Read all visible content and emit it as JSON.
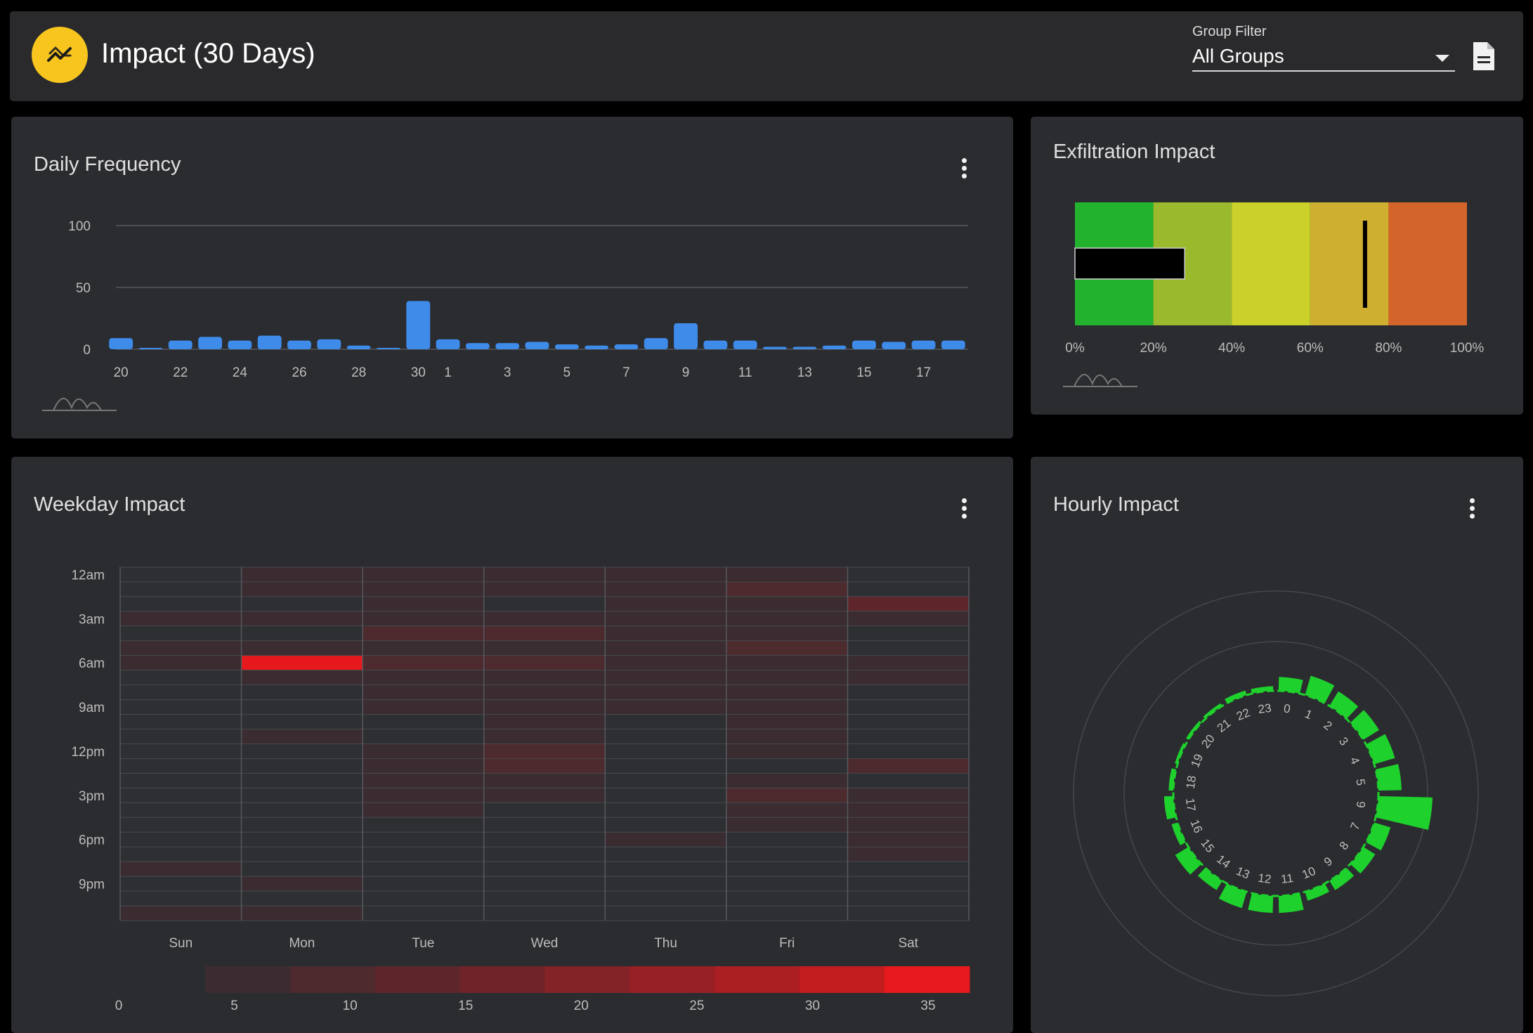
{
  "header": {
    "title": "Impact (30 Days)",
    "icon": "trending-icon",
    "filter_label": "Group Filter",
    "filter_value": "All Groups",
    "export_icon": "document-icon",
    "accent": "#f7c51e"
  },
  "daily": {
    "title": "Daily Frequency",
    "menu_icon": "more-vert-icon",
    "chart_data": {
      "type": "bar",
      "categories": [
        "20",
        "21",
        "22",
        "23",
        "24",
        "25",
        "26",
        "27",
        "28",
        "29",
        "30",
        "1",
        "2",
        "3",
        "4",
        "5",
        "6",
        "7",
        "8",
        "9",
        "10",
        "11",
        "12",
        "13",
        "14",
        "15",
        "16",
        "17",
        "18"
      ],
      "values": [
        9,
        1,
        7,
        10,
        7,
        11,
        7,
        8,
        3,
        1,
        39,
        8,
        5,
        5,
        6,
        4,
        3,
        4,
        9,
        21,
        7,
        7,
        2,
        2,
        3,
        7,
        6,
        7,
        7
      ],
      "xticks": [
        "20",
        "22",
        "24",
        "26",
        "28",
        "30",
        "1",
        "3",
        "5",
        "7",
        "9",
        "11",
        "13",
        "15",
        "17"
      ],
      "yticks": [
        "0",
        "50",
        "100"
      ],
      "ylim": [
        0,
        100
      ],
      "color": "#3e8bea",
      "grid": true
    }
  },
  "exfil": {
    "title": "Exfiltration Impact",
    "chart_data": {
      "type": "bullet",
      "bands": [
        {
          "from": 0,
          "to": 20,
          "color": "#22b22e"
        },
        {
          "from": 20,
          "to": 40,
          "color": "#9ab92d"
        },
        {
          "from": 40,
          "to": 60,
          "color": "#cbd12a"
        },
        {
          "from": 60,
          "to": 80,
          "color": "#cfaf2f"
        },
        {
          "from": 80,
          "to": 100,
          "color": "#d4652a"
        }
      ],
      "value": 28,
      "target": 74,
      "ticks": [
        "0%",
        "20%",
        "40%",
        "60%",
        "80%",
        "100%"
      ]
    }
  },
  "weekday": {
    "title": "Weekday Impact",
    "menu_icon": "more-vert-icon",
    "chart_data": {
      "type": "heatmap",
      "days": [
        "Sun",
        "Mon",
        "Tue",
        "Wed",
        "Thu",
        "Fri",
        "Sat"
      ],
      "hour_labels": [
        "12am",
        "3am",
        "6am",
        "9am",
        "12pm",
        "3pm",
        "6pm",
        "9pm"
      ],
      "values": [
        [
          1,
          3,
          2,
          2,
          2,
          2,
          1
        ],
        [
          1,
          2,
          2,
          2,
          3,
          6,
          1
        ],
        [
          1,
          1,
          2,
          1,
          2,
          3,
          9
        ],
        [
          3,
          2,
          3,
          2,
          2,
          4,
          2
        ],
        [
          1,
          1,
          8,
          6,
          2,
          3,
          1
        ],
        [
          2,
          2,
          3,
          3,
          2,
          7,
          1
        ],
        [
          3,
          36,
          5,
          5,
          3,
          4,
          3
        ],
        [
          1,
          2,
          4,
          3,
          2,
          3,
          2
        ],
        [
          1,
          1,
          2,
          2,
          3,
          2,
          1
        ],
        [
          1,
          1,
          2,
          2,
          2,
          2,
          1
        ],
        [
          1,
          1,
          1,
          2,
          1,
          2,
          1
        ],
        [
          1,
          4,
          1,
          3,
          1,
          4,
          1
        ],
        [
          1,
          1,
          4,
          6,
          1,
          2,
          1
        ],
        [
          1,
          1,
          2,
          5,
          1,
          1,
          6
        ],
        [
          1,
          1,
          4,
          2,
          1,
          2,
          1
        ],
        [
          1,
          1,
          3,
          2,
          1,
          5,
          4
        ],
        [
          1,
          1,
          2,
          1,
          1,
          3,
          4
        ],
        [
          1,
          1,
          1,
          1,
          1,
          2,
          4
        ],
        [
          1,
          1,
          1,
          1,
          3,
          1,
          4
        ],
        [
          1,
          1,
          1,
          1,
          1,
          1,
          2
        ],
        [
          2,
          1,
          1,
          1,
          1,
          1,
          1
        ],
        [
          1,
          2,
          1,
          1,
          1,
          1,
          1
        ],
        [
          1,
          1,
          1,
          1,
          1,
          1,
          1
        ],
        [
          2,
          2,
          1,
          1,
          1,
          1,
          1
        ]
      ],
      "scale": {
        "ticks": [
          "0",
          "5",
          "10",
          "15",
          "20",
          "25",
          "30",
          "35"
        ],
        "colors": [
          "#3a2c30",
          "#4d2a2e",
          "#5e262b",
          "#702429",
          "#842327",
          "#972024",
          "#ab1e22",
          "#c31c1f",
          "#e8191c"
        ],
        "max": 36
      }
    }
  },
  "hourly": {
    "title": "Hourly Impact",
    "menu_icon": "more-vert-icon",
    "chart_data": {
      "type": "radial-bar",
      "hours": [
        "0",
        "1",
        "2",
        "3",
        "4",
        "5",
        "6",
        "7",
        "8",
        "9",
        "10",
        "11",
        "12",
        "13",
        "14",
        "15",
        "16",
        "17",
        "18",
        "19",
        "20",
        "21",
        "22",
        "23"
      ],
      "values": [
        18,
        26,
        22,
        24,
        28,
        30,
        70,
        22,
        18,
        14,
        12,
        22,
        22,
        22,
        14,
        20,
        8,
        12,
        6,
        0,
        3,
        4,
        6,
        6
      ],
      "color": "#1ed12c"
    }
  }
}
